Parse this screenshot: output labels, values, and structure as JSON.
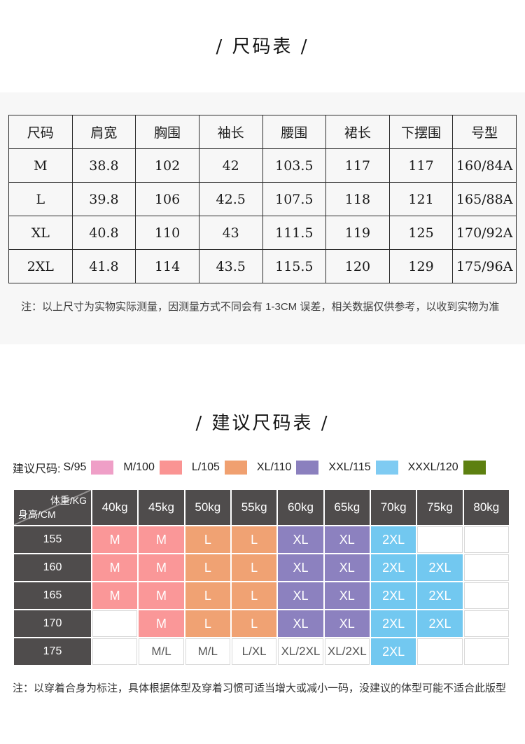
{
  "section1": {
    "title": "/ 尺码表 /",
    "table": {
      "headers": [
        "尺码",
        "肩宽",
        "胸围",
        "袖长",
        "腰围",
        "裙长",
        "下摆围",
        "号型"
      ],
      "rows": [
        [
          "M",
          "38.8",
          "102",
          "42",
          "103.5",
          "117",
          "117",
          "160/84A"
        ],
        [
          "L",
          "39.8",
          "106",
          "42.5",
          "107.5",
          "118",
          "121",
          "165/88A"
        ],
        [
          "XL",
          "40.8",
          "110",
          "43",
          "111.5",
          "119",
          "125",
          "170/92A"
        ],
        [
          "2XL",
          "41.8",
          "114",
          "43.5",
          "115.5",
          "120",
          "129",
          "175/96A"
        ]
      ]
    },
    "note": "注：以上尺寸为实物实际测量，因测量方式不同会有 1-3CM 误差，相关数据仅供参考，以收到实物为准"
  },
  "section2": {
    "title": "/ 建议尺码表 /",
    "legend": {
      "label": "建议尺码:",
      "items": [
        {
          "label": "S/95",
          "color": "#ef9fc7"
        },
        {
          "label": "M/100",
          "color": "#fa9493"
        },
        {
          "label": "L/105",
          "color": "#f0a070"
        },
        {
          "label": "XL/110",
          "color": "#8b80be"
        },
        {
          "label": "XXL/115",
          "color": "#7fcbf2"
        },
        {
          "label": "XXXL/120",
          "color": "#5d8010"
        }
      ]
    },
    "matrix": {
      "header_bg": "#4f4c4c",
      "corner_top": "体重/KG",
      "corner_bottom": "身高/CM",
      "weights": [
        "40kg",
        "45kg",
        "50kg",
        "55kg",
        "60kg",
        "65kg",
        "70kg",
        "75kg",
        "80kg"
      ],
      "size_colors": {
        "M": "#fa9798",
        "L": "#f0a273",
        "XL": "#8c81bf",
        "2XL": "#72c8f0"
      },
      "rows": [
        {
          "height": "155",
          "cells": [
            "M",
            "M",
            "L",
            "L",
            "XL",
            "XL",
            "2XL",
            "",
            ""
          ]
        },
        {
          "height": "160",
          "cells": [
            "M",
            "M",
            "L",
            "L",
            "XL",
            "XL",
            "2XL",
            "2XL",
            ""
          ]
        },
        {
          "height": "165",
          "cells": [
            "M",
            "M",
            "L",
            "L",
            "XL",
            "XL",
            "2XL",
            "2XL",
            ""
          ]
        },
        {
          "height": "170",
          "cells": [
            "",
            "M",
            "L",
            "L",
            "XL",
            "XL",
            "2XL",
            "2XL",
            ""
          ]
        },
        {
          "height": "175",
          "cells": [
            "",
            "M/L",
            "M/L",
            "L/XL",
            "XL/2XL",
            "XL/2XL",
            "2XL",
            "",
            ""
          ]
        }
      ]
    },
    "note": "注：以穿着合身为标注，具体根据体型及穿着习惯可适当增大或减小一码，没建议的体型可能不适合此版型"
  }
}
